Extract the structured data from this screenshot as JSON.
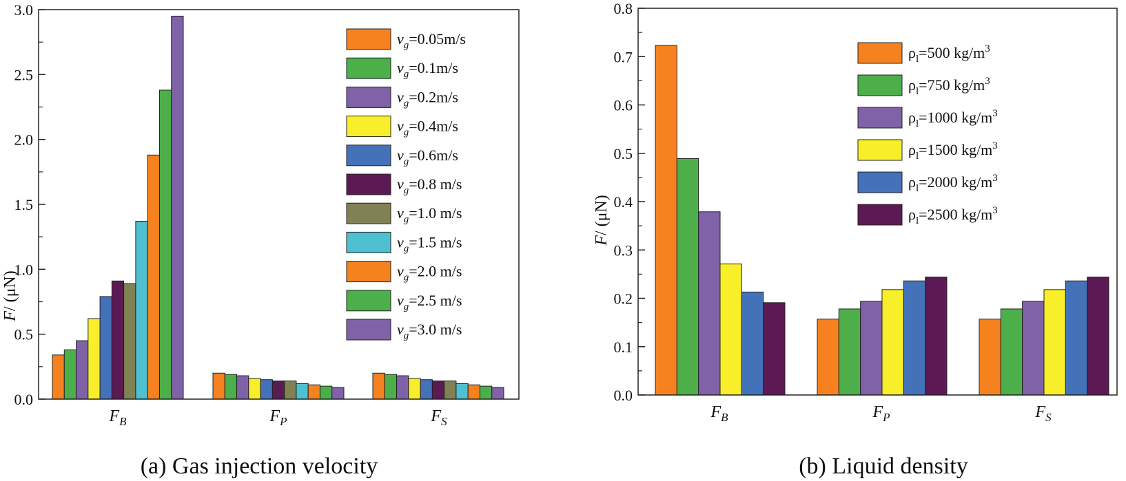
{
  "chart_data": [
    {
      "type": "bar",
      "title": "",
      "caption": "(a) Gas injection velocity",
      "ylabel": "F/ (μN)",
      "ylabel_main": "F",
      "ylabel_rest": "/ (μN)",
      "ylim": [
        0,
        3.0
      ],
      "yticks": [
        "0.0",
        "0.5",
        "1.0",
        "1.5",
        "2.0",
        "2.5",
        "3.0"
      ],
      "ytick_values": [
        0,
        0.5,
        1.0,
        1.5,
        2.0,
        2.5,
        3.0
      ],
      "categories": [
        {
          "main": "F",
          "sub": "B"
        },
        {
          "main": "F",
          "sub": "P"
        },
        {
          "main": "F",
          "sub": "S"
        }
      ],
      "legend_position": "top-right",
      "series": [
        {
          "name": "v_g=0.05m/s",
          "label_main": "v",
          "label_sub": "g",
          "label_rest": "=0.05m/s",
          "color": "#F5821F",
          "values": [
            0.34,
            0.2,
            0.2
          ]
        },
        {
          "name": "v_g=0.1m/s",
          "label_main": "v",
          "label_sub": "g",
          "label_rest": "=0.1m/s",
          "color": "#4DAF4A",
          "values": [
            0.38,
            0.19,
            0.19
          ]
        },
        {
          "name": "v_g=0.2m/s",
          "label_main": "v",
          "label_sub": "g",
          "label_rest": "=0.2m/s",
          "color": "#8062A8",
          "values": [
            0.45,
            0.18,
            0.18
          ]
        },
        {
          "name": "v_g=0.4m/s",
          "label_main": "v",
          "label_sub": "g",
          "label_rest": "=0.4m/s",
          "color": "#F9EE2A",
          "values": [
            0.62,
            0.16,
            0.16
          ]
        },
        {
          "name": "v_g=0.6m/s",
          "label_main": "v",
          "label_sub": "g",
          "label_rest": "=0.6m/s",
          "color": "#4472B8",
          "values": [
            0.79,
            0.15,
            0.15
          ]
        },
        {
          "name": "v_g=0.8 m/s",
          "label_main": "v",
          "label_sub": "g",
          "label_rest": "=0.8 m/s",
          "color": "#5C1A55",
          "values": [
            0.91,
            0.14,
            0.14
          ]
        },
        {
          "name": "v_g=1.0 m/s",
          "label_main": "v",
          "label_sub": "g",
          "label_rest": "=1.0 m/s",
          "color": "#808254",
          "values": [
            0.89,
            0.14,
            0.14
          ]
        },
        {
          "name": "v_g=1.5 m/s",
          "label_main": "v",
          "label_sub": "g",
          "label_rest": "=1.5 m/s",
          "color": "#4EC0D2",
          "values": [
            1.37,
            0.12,
            0.12
          ]
        },
        {
          "name": "v_g=2.0 m/s",
          "label_main": "v",
          "label_sub": "g",
          "label_rest": "=2.0 m/s",
          "color": "#F5821F",
          "values": [
            1.88,
            0.11,
            0.11
          ]
        },
        {
          "name": "v_g=2.5 m/s",
          "label_main": "v",
          "label_sub": "g",
          "label_rest": "=2.5 m/s",
          "color": "#4DAF4A",
          "values": [
            2.38,
            0.1,
            0.1
          ]
        },
        {
          "name": "v_g=3.0 m/s",
          "label_main": "v",
          "label_sub": "g",
          "label_rest": "=3.0 m/s",
          "color": "#8062A8",
          "values": [
            2.95,
            0.09,
            0.09
          ]
        }
      ]
    },
    {
      "type": "bar",
      "title": "",
      "caption": "(b) Liquid density",
      "ylabel": "F/ (μN)",
      "ylabel_main": "F",
      "ylabel_rest": "/ (μN)",
      "ylim": [
        0,
        0.8
      ],
      "yticks": [
        "0.0",
        "0.1",
        "0.2",
        "0.3",
        "0.4",
        "0.5",
        "0.6",
        "0.7",
        "0.8"
      ],
      "ytick_values": [
        0,
        0.1,
        0.2,
        0.3,
        0.4,
        0.5,
        0.6,
        0.7,
        0.8
      ],
      "categories": [
        {
          "main": "F",
          "sub": "B"
        },
        {
          "main": "F",
          "sub": "P"
        },
        {
          "main": "F",
          "sub": "S"
        }
      ],
      "legend_position": "top-right",
      "series": [
        {
          "name": "ρl=500 kg/m3",
          "label_main": "ρ",
          "label_sub": "l",
          "label_rest": "=500 kg/m",
          "label_sup": "3",
          "color": "#F5821F",
          "values": [
            0.723,
            0.157,
            0.157
          ]
        },
        {
          "name": "ρl=750 kg/m3",
          "label_main": "ρ",
          "label_sub": "l",
          "label_rest": "=750 kg/m",
          "label_sup": "3",
          "color": "#4DAF4A",
          "values": [
            0.489,
            0.178,
            0.178
          ]
        },
        {
          "name": "ρl=1000 kg/m3",
          "label_main": "ρ",
          "label_sub": "l",
          "label_rest": "=1000 kg/m",
          "label_sup": "3",
          "color": "#8062A8",
          "values": [
            0.379,
            0.194,
            0.194
          ]
        },
        {
          "name": "ρl=1500 kg/m3",
          "label_main": "ρ",
          "label_sub": "l",
          "label_rest": "=1500 kg/m",
          "label_sup": "3",
          "color": "#F9EE2A",
          "values": [
            0.271,
            0.218,
            0.218
          ]
        },
        {
          "name": "ρl=2000 kg/m3",
          "label_main": "ρ",
          "label_sub": "l",
          "label_rest": "=2000 kg/m",
          "label_sup": "3",
          "color": "#4472B8",
          "values": [
            0.213,
            0.236,
            0.236
          ]
        },
        {
          "name": "ρl=2500 kg/m3",
          "label_main": "ρ",
          "label_sub": "l",
          "label_rest": "=2500 kg/m",
          "label_sup": "3",
          "color": "#5C1A55",
          "values": [
            0.191,
            0.244,
            0.244
          ]
        }
      ]
    }
  ]
}
